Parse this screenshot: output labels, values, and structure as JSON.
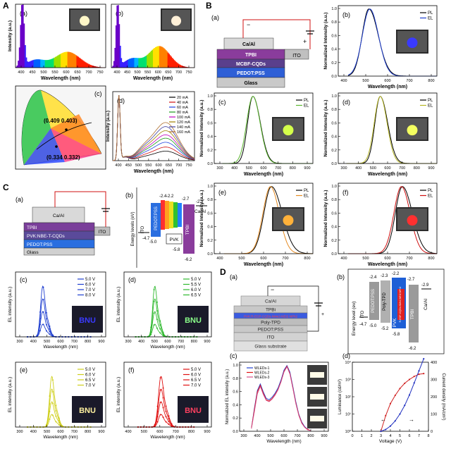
{
  "figure": {
    "colors": {
      "black": "#000000",
      "blue": "#1f4fd8",
      "green": "#3cbd29",
      "yellow": "#d7d622",
      "red": "#e01010",
      "pink": "#d8508a",
      "purple": "#7b2d8e"
    },
    "panelA": {
      "letter": "A",
      "a": {
        "label": "(a)",
        "xlabel": "Wavelength (nm)",
        "ylabel": "Intensity (a.u.)",
        "xticks": [
          "400",
          "450",
          "500",
          "550",
          "600",
          "650",
          "700",
          "750"
        ]
      },
      "b": {
        "label": "(b)",
        "xlabel": "Wavelength (nm)",
        "xticks": [
          "400",
          "450",
          "500",
          "550",
          "600",
          "650",
          "700",
          "750"
        ]
      },
      "cie": {
        "label": "(c)",
        "point1": "(0.409 0.403)",
        "point2": "(0.334 0.332)",
        "ticks": [
          "0.0",
          "0.1",
          "0.2",
          "0.3",
          "0.4",
          "0.5",
          "0.6",
          "0.7",
          "0.8"
        ]
      },
      "d": {
        "label": "(d)",
        "xlabel": "Wavelength (nm)",
        "ylabel": "Intensity (a.u.)",
        "xticks": [
          "400",
          "450",
          "500",
          "550",
          "600",
          "650",
          "700",
          "750"
        ],
        "legend": [
          "20 mA",
          "40 mA",
          "60 mA",
          "80 mA",
          "100 mA",
          "120 mA",
          "140 mA",
          "160 mA"
        ]
      }
    },
    "panelB": {
      "letter": "B",
      "a": {
        "label": "(a)",
        "layers": [
          "Ca/Al",
          "TPBI",
          "MCBF-CQDs",
          "PEDOT:PSS",
          "Glass"
        ],
        "ito": "ITO"
      },
      "charts": [
        {
          "label": "(b)",
          "legend": [
            "PL",
            "EL"
          ],
          "xticks": [
            "400",
            "500",
            "600",
            "700",
            "800"
          ],
          "xlabel": "Wavelength (nm)",
          "ylabel": "Normalized Intensity (a.u.)"
        },
        {
          "label": "(c)",
          "legend": [
            "PL",
            "EL"
          ],
          "xticks": [
            "300",
            "400",
            "500",
            "600",
            "700",
            "800",
            "900"
          ],
          "xlabel": "Wavelength (nm)",
          "ylabel": "Normalized Intensity (a.u.)"
        },
        {
          "label": "(d)",
          "legend": [
            "PL",
            "EL"
          ],
          "xticks": [
            "300",
            "400",
            "500",
            "600",
            "700",
            "800",
            "900"
          ],
          "xlabel": "Wavelength (nm)",
          "ylabel": "Normalized Intensity (a.u.)"
        },
        {
          "label": "(e)",
          "legend": [
            "PL",
            "EL"
          ],
          "xticks": [
            "400",
            "500",
            "600",
            "700",
            "800"
          ],
          "xlabel": "Wavelength (nm)",
          "ylabel": "Normalized Intensity (a.u.)"
        },
        {
          "label": "(f)",
          "legend": [
            "PL",
            "EL"
          ],
          "xticks": [
            "400",
            "500",
            "600",
            "700",
            "800"
          ],
          "xlabel": "Wavelength (nm)",
          "ylabel": "Normalized Intensity (a.u.)"
        }
      ],
      "yticks": [
        "0.0",
        "0.2",
        "0.4",
        "0.6",
        "0.8",
        "1.0"
      ]
    },
    "panelC": {
      "letter": "C",
      "a": {
        "label": "(a)",
        "layers": [
          "Ca/Al",
          "TPBI",
          "PVK:NBE-T-CQDs",
          "PEDOT:PSS",
          "Glass"
        ],
        "ito": "ITO"
      },
      "b": {
        "label": "(b)",
        "ylabel": "Energy levels (eV)",
        "ito": "ITO",
        "ito_val": "-4.7",
        "pedot": "PEDOT:PSS",
        "pedot_val": "-5.0",
        "pvk": "PVK",
        "pvk_top": "-2.2",
        "pvk_bot": "-5.8",
        "tpbi": "TPBI",
        "tpbi_top": "-2.7",
        "tpbi_bot": "-6.2",
        "caal": "Ca/Al",
        "caal_val": "-2.9",
        "qd_top": "-2.4"
      },
      "charts": [
        {
          "label": "(c)",
          "legend": [
            "5.0 V",
            "6.0 V",
            "7.0 V",
            "8.0 V"
          ],
          "ylabel": "EL intensity (a.u.)",
          "xlabel": "Wavelength (nm)",
          "xticks": [
            "300",
            "400",
            "500",
            "600",
            "700",
            "800",
            "900"
          ],
          "badge": "BNU"
        },
        {
          "label": "(d)",
          "legend": [
            "5.0 V",
            "5.5 V",
            "6.0 V",
            "6.5 V"
          ],
          "ylabel": "EL intensity (a.u.)",
          "xlabel": "Wavelength (nm)",
          "xticks": [
            "300",
            "400",
            "500",
            "600",
            "700",
            "800",
            "900"
          ],
          "badge": "BNU"
        },
        {
          "label": "(e)",
          "legend": [
            "5.0 V",
            "6.0 V",
            "6.5 V",
            "7.0 V"
          ],
          "ylabel": "EL intensity (a.u.)",
          "xlabel": "Wavelength (nm)",
          "xticks": [
            "300",
            "400",
            "500",
            "600",
            "700",
            "800",
            "900"
          ],
          "badge": "BNU"
        },
        {
          "label": "(f)",
          "legend": [
            "5.0 V",
            "6.0 V",
            "6.5 V",
            "7.0 V"
          ],
          "ylabel": "EL intensity (a.u.)",
          "xlabel": "Wavelength (nm)",
          "xticks": [
            "400",
            "500",
            "600",
            "700",
            "800",
            "900"
          ],
          "badge": "BNU"
        }
      ]
    },
    "panelD": {
      "letter": "D",
      "a": {
        "label": "(a)",
        "layers": [
          "Ca/Al",
          "TPBi",
          "PVK:R-EGP-CQDs-NMe2-NEt2-NPh2",
          "Poly-TPD",
          "PEDOT:PSS",
          "ITO",
          "Glass substrate"
        ]
      },
      "b": {
        "label": "(b)",
        "ylabel": "Energy level (ev)",
        "ito": "ITO",
        "ito_val": "-4.7",
        "pedot": "PEDOT:PSS",
        "pedot_top": "-2.4",
        "pedot_bot": "-5.0",
        "polytpd": "Poly-TPD",
        "polytpd_top": "-2.3",
        "polytpd_bot": "-5.2",
        "pvk": "PVK",
        "pvk_top": "-2.2",
        "pvk_bot": "-5.8",
        "qd": "R-EGP-CQDs-NMe2,NEt2,NPh2",
        "tpbi": "TPBI",
        "tpbi_top": "-2.7",
        "tpbi_bot": "-6.2",
        "caal": "Ca/Al",
        "caal_val": "-2.9"
      },
      "c": {
        "label": "(c)",
        "legend": [
          "WLEDs-1",
          "WLEDs-2",
          "WLEDs-3"
        ],
        "ylabel": "Normalized EL intensity (a.u.)",
        "xlabel": "Wavelength (nm)",
        "xticks": [
          "300",
          "400",
          "500",
          "600",
          "700",
          "800",
          "900"
        ],
        "yticks": [
          "0.0",
          "0.2",
          "0.4",
          "0.6",
          "0.8",
          "1.0"
        ]
      },
      "d": {
        "label": "(d)",
        "xlabel": "Voltage (V)",
        "ylabel": "Luminance (cd/m²)",
        "y2label": "Current density (mA/cm²)",
        "xticks": [
          "0",
          "1",
          "2",
          "3",
          "4",
          "5",
          "6",
          "7",
          "8"
        ],
        "yticks": [
          "10⁰",
          "10¹",
          "10²",
          "10³",
          "10⁴"
        ],
        "y2ticks": [
          "0",
          "100",
          "200",
          "300",
          "400"
        ]
      }
    }
  },
  "chart_data": [
    {
      "panel": "A(a)",
      "type": "line",
      "xlabel": "Wavelength (nm)",
      "ylabel": "Intensity (a.u.)",
      "xlim": [
        380,
        780
      ],
      "x": [
        380,
        400,
        410,
        420,
        440,
        460,
        480,
        500,
        520,
        540,
        560,
        580,
        600,
        620,
        640,
        660,
        680,
        700,
        720,
        750,
        780
      ],
      "series": [
        {
          "values": [
            0.02,
            0.45,
            1.0,
            0.4,
            0.12,
            0.1,
            0.12,
            0.15,
            0.18,
            0.2,
            0.22,
            0.24,
            0.26,
            0.27,
            0.25,
            0.2,
            0.14,
            0.09,
            0.05,
            0.02,
            0.01
          ]
        }
      ]
    },
    {
      "panel": "A(b)",
      "type": "line",
      "xlabel": "Wavelength (nm)",
      "xlim": [
        380,
        780
      ],
      "x": [
        380,
        400,
        410,
        420,
        440,
        460,
        480,
        500,
        520,
        540,
        560,
        580,
        600,
        620,
        640,
        660,
        680,
        700,
        720,
        750,
        780
      ],
      "series": [
        {
          "values": [
            0.02,
            0.5,
            1.0,
            0.45,
            0.14,
            0.12,
            0.14,
            0.17,
            0.2,
            0.24,
            0.28,
            0.32,
            0.35,
            0.36,
            0.33,
            0.26,
            0.18,
            0.11,
            0.06,
            0.02,
            0.01
          ]
        }
      ]
    },
    {
      "panel": "A(d)",
      "type": "line",
      "xlabel": "Wavelength (nm)",
      "ylabel": "Intensity (a.u.)",
      "xlim": [
        380,
        780
      ],
      "series": [
        {
          "name": "20 mA",
          "peak": 0.14
        },
        {
          "name": "40 mA",
          "peak": 0.2
        },
        {
          "name": "60 mA",
          "peak": 0.27
        },
        {
          "name": "80 mA",
          "peak": 0.33
        },
        {
          "name": "100 mA",
          "peak": 0.38
        },
        {
          "name": "120 mA",
          "peak": 0.44
        },
        {
          "name": "140 mA",
          "peak": 0.5
        },
        {
          "name": "160 mA",
          "peak": 0.56
        }
      ]
    },
    {
      "panel": "B(b)",
      "type": "line",
      "series": [
        {
          "name": "PL",
          "peak_nm": 455
        },
        {
          "name": "EL",
          "peak_nm": 460
        }
      ],
      "xlim": [
        300,
        800
      ],
      "ylim": [
        0,
        1.0
      ]
    },
    {
      "panel": "B(c)",
      "type": "line",
      "series": [
        {
          "name": "PL",
          "peak_nm": 535
        },
        {
          "name": "EL",
          "peak_nm": 535
        }
      ],
      "xlim": [
        300,
        900
      ],
      "ylim": [
        0,
        1.0
      ]
    },
    {
      "panel": "B(d)",
      "type": "line",
      "series": [
        {
          "name": "PL",
          "peak_nm": 555
        },
        {
          "name": "EL",
          "peak_nm": 555
        }
      ],
      "xlim": [
        300,
        900
      ],
      "ylim": [
        0,
        1.0
      ]
    },
    {
      "panel": "B(e)",
      "type": "line",
      "series": [
        {
          "name": "PL",
          "peak_nm": 590
        },
        {
          "name": "EL",
          "peak_nm": 585
        }
      ],
      "xlim": [
        300,
        900
      ],
      "ylim": [
        0,
        1.0
      ]
    },
    {
      "panel": "B(f)",
      "type": "line",
      "series": [
        {
          "name": "PL",
          "peak_nm": 625
        },
        {
          "name": "EL",
          "peak_nm": 620
        }
      ],
      "xlim": [
        300,
        900
      ],
      "ylim": [
        0,
        1.0
      ]
    },
    {
      "panel": "C(c)",
      "type": "line",
      "series": [
        {
          "name": "5.0 V",
          "peak": 0.25
        },
        {
          "name": "6.0 V",
          "peak": 0.45
        },
        {
          "name": "7.0 V",
          "peak": 0.7
        },
        {
          "name": "8.0 V",
          "peak": 1.0
        }
      ],
      "peak_nm": 480,
      "xlim": [
        300,
        900
      ]
    },
    {
      "panel": "C(d)",
      "type": "line",
      "series": [
        {
          "name": "5.0 V",
          "peak": 0.3
        },
        {
          "name": "5.5 V",
          "peak": 0.5
        },
        {
          "name": "6.0 V",
          "peak": 0.75
        },
        {
          "name": "6.5 V",
          "peak": 1.0
        }
      ],
      "peak_nm": 510,
      "xlim": [
        300,
        900
      ]
    },
    {
      "panel": "C(e)",
      "type": "line",
      "series": [
        {
          "name": "5.0 V",
          "peak": 0.3
        },
        {
          "name": "6.0 V",
          "peak": 0.55
        },
        {
          "name": "6.5 V",
          "peak": 0.8
        },
        {
          "name": "7.0 V",
          "peak": 1.0
        }
      ],
      "peak_nm": 540,
      "xlim": [
        300,
        900
      ]
    },
    {
      "panel": "C(f)",
      "type": "line",
      "series": [
        {
          "name": "5.0 V",
          "peak": 0.3
        },
        {
          "name": "6.0 V",
          "peak": 0.55
        },
        {
          "name": "6.5 V",
          "peak": 0.8
        },
        {
          "name": "7.0 V",
          "peak": 1.0
        }
      ],
      "peak_nm": 610,
      "xlim": [
        400,
        900
      ]
    },
    {
      "panel": "D(c)",
      "type": "line",
      "xlim": [
        300,
        900
      ],
      "ylim": [
        0,
        1.0
      ],
      "x": [
        380,
        400,
        420,
        440,
        460,
        480,
        500,
        520,
        540,
        560,
        580,
        600,
        620,
        640,
        660,
        680,
        700,
        720,
        740,
        760,
        780
      ],
      "series": [
        {
          "name": "WLEDs-1",
          "values": [
            0.05,
            0.35,
            0.62,
            0.72,
            0.6,
            0.5,
            0.48,
            0.52,
            0.58,
            0.66,
            0.78,
            0.93,
            1.0,
            0.9,
            0.68,
            0.45,
            0.26,
            0.14,
            0.07,
            0.03,
            0.01
          ]
        },
        {
          "name": "WLEDs-2",
          "values": [
            0.05,
            0.33,
            0.6,
            0.7,
            0.58,
            0.48,
            0.46,
            0.5,
            0.56,
            0.64,
            0.76,
            0.91,
            0.99,
            0.88,
            0.66,
            0.43,
            0.25,
            0.13,
            0.06,
            0.03,
            0.01
          ]
        },
        {
          "name": "WLEDs-3",
          "values": [
            0.04,
            0.3,
            0.57,
            0.68,
            0.56,
            0.47,
            0.45,
            0.49,
            0.55,
            0.63,
            0.75,
            0.9,
            0.98,
            0.87,
            0.65,
            0.42,
            0.24,
            0.12,
            0.06,
            0.02,
            0.01
          ]
        }
      ]
    },
    {
      "panel": "D(d)",
      "type": "line",
      "xlabel": "Voltage (V)",
      "ylabel": "Luminance (cd/m²)",
      "y2label": "Current density (mA/cm²)",
      "xlim": [
        0,
        8
      ],
      "x": [
        3.0,
        3.5,
        4,
        4.5,
        5,
        5.5,
        6,
        6.5,
        7,
        7.5
      ],
      "series": [
        {
          "name": "Luminance",
          "values": [
            1,
            8,
            40,
            120,
            300,
            600,
            1000,
            1500,
            2000,
            2200
          ]
        },
        {
          "name": "Current density",
          "values": [
            0,
            10,
            30,
            60,
            100,
            150,
            210,
            280,
            350,
            420
          ]
        }
      ]
    }
  ]
}
